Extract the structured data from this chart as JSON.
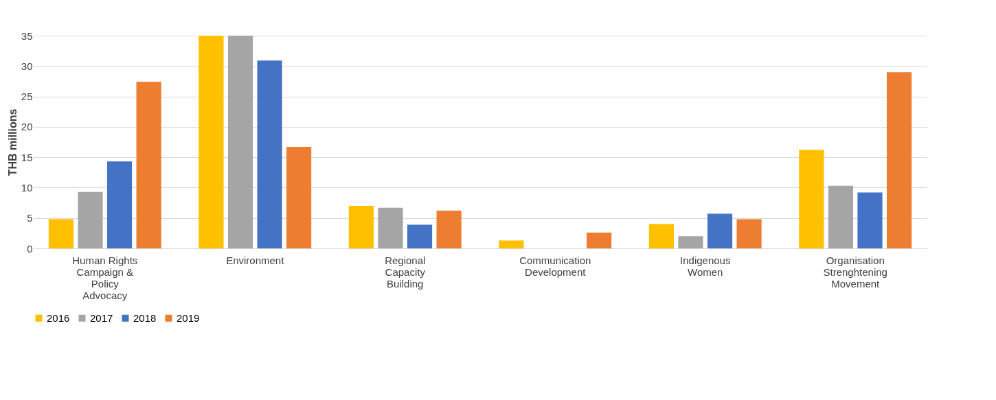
{
  "chart_data": {
    "type": "bar",
    "ylabel": "THB millions",
    "categories": [
      "Human Rights Campaign & Policy Advocacy",
      "Environment",
      "Regional Capacity Building",
      "Communication Development",
      "Indigenous Women",
      "Organisation Strenghtening Movement"
    ],
    "series": [
      {
        "name": "2016",
        "color": "#ffc000",
        "values": [
          4.8,
          35,
          7.0,
          1.3,
          4.0,
          16.2
        ]
      },
      {
        "name": "2017",
        "color": "#a5a5a5",
        "values": [
          9.3,
          35,
          6.7,
          null,
          2.0,
          10.3
        ]
      },
      {
        "name": "2018",
        "color": "#4472c4",
        "values": [
          14.3,
          30.9,
          3.9,
          null,
          5.7,
          9.2
        ]
      },
      {
        "name": "2019",
        "color": "#ed7d31",
        "values": [
          27.4,
          16.7,
          6.2,
          2.6,
          4.8,
          29.0
        ]
      }
    ],
    "ylim": [
      0,
      35
    ],
    "yticks": [
      0,
      5,
      10,
      15,
      20,
      25,
      30,
      35
    ],
    "grid": "y",
    "legend": "bottom"
  }
}
